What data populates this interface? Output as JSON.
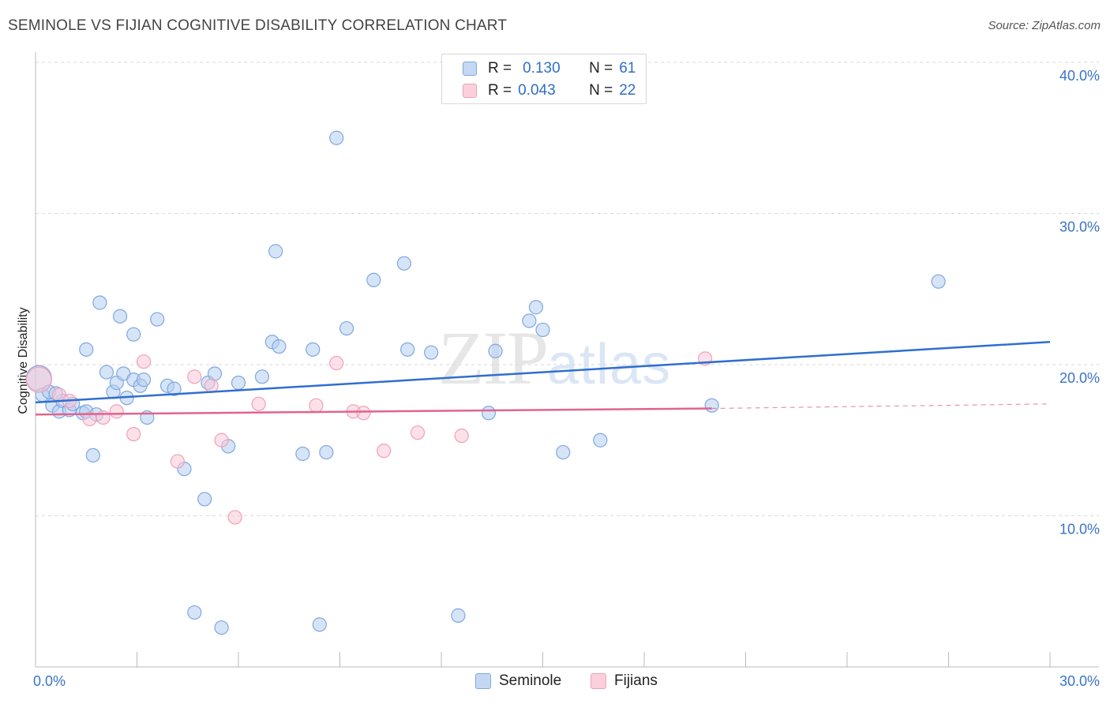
{
  "title": "SEMINOLE VS FIJIAN COGNITIVE DISABILITY CORRELATION CHART",
  "source": "Source: ZipAtlas.com",
  "watermark": {
    "zip": "ZIP",
    "atlas": "atlas"
  },
  "legend": {
    "series": [
      {
        "r_label": "R =",
        "r_value": "0.130",
        "n_label": "N =",
        "n_value": "61",
        "color": "#7fa8e0",
        "fill": "#c5d8f3"
      },
      {
        "r_label": "R =",
        "r_value": "0.043",
        "n_label": "N =",
        "n_value": "22",
        "color": "#f0a0b8",
        "fill": "#f9d0dc"
      }
    ]
  },
  "bottom_legend": [
    "Seminole",
    "Fijians"
  ],
  "chart_data": {
    "type": "scatter",
    "ylabel": "Cognitive Disability",
    "xlim": [
      0,
      30
    ],
    "ylim": [
      0,
      40
    ],
    "x_tick_labels": [
      {
        "value": 0,
        "label": "0.0%"
      },
      {
        "value": 30,
        "label": "30.0%"
      }
    ],
    "y_tick_labels": [
      {
        "value": 10,
        "label": "10.0%"
      },
      {
        "value": 20,
        "label": "20.0%"
      },
      {
        "value": 30,
        "label": "30.0%"
      },
      {
        "value": 40,
        "label": "40.0%"
      }
    ],
    "series": [
      {
        "name": "Seminole",
        "color": "#2f6fcf",
        "trend": {
          "x": [
            0,
            30
          ],
          "y": [
            17.5,
            21.5
          ]
        },
        "points": [
          [
            0.1,
            19.1
          ],
          [
            0.2,
            18.0
          ],
          [
            0.4,
            18.2
          ],
          [
            0.5,
            17.3
          ],
          [
            0.7,
            16.9
          ],
          [
            0.8,
            17.6
          ],
          [
            1.0,
            17.0
          ],
          [
            1.1,
            17.4
          ],
          [
            1.4,
            16.8
          ],
          [
            1.5,
            16.9
          ],
          [
            1.8,
            16.7
          ],
          [
            1.5,
            21.0
          ],
          [
            1.7,
            14.0
          ],
          [
            1.9,
            24.1
          ],
          [
            2.1,
            19.5
          ],
          [
            2.3,
            18.2
          ],
          [
            2.4,
            18.8
          ],
          [
            2.5,
            23.2
          ],
          [
            2.6,
            19.4
          ],
          [
            2.7,
            17.8
          ],
          [
            2.9,
            19.0
          ],
          [
            2.9,
            22.0
          ],
          [
            3.1,
            18.6
          ],
          [
            3.2,
            19.0
          ],
          [
            3.3,
            16.5
          ],
          [
            3.6,
            23.0
          ],
          [
            3.9,
            18.6
          ],
          [
            4.1,
            18.4
          ],
          [
            4.4,
            13.1
          ],
          [
            4.7,
            3.6
          ],
          [
            5.0,
            11.1
          ],
          [
            5.1,
            18.8
          ],
          [
            5.3,
            19.4
          ],
          [
            5.5,
            2.6
          ],
          [
            5.7,
            14.6
          ],
          [
            6.0,
            18.8
          ],
          [
            6.7,
            19.2
          ],
          [
            7.0,
            21.5
          ],
          [
            7.1,
            27.5
          ],
          [
            7.2,
            21.2
          ],
          [
            7.9,
            14.1
          ],
          [
            8.2,
            21.0
          ],
          [
            8.4,
            2.8
          ],
          [
            8.6,
            14.2
          ],
          [
            8.9,
            35.0
          ],
          [
            9.2,
            22.4
          ],
          [
            10.0,
            25.6
          ],
          [
            10.9,
            26.7
          ],
          [
            11.0,
            21.0
          ],
          [
            11.7,
            20.8
          ],
          [
            12.5,
            3.4
          ],
          [
            13.4,
            16.8
          ],
          [
            13.6,
            20.9
          ],
          [
            14.6,
            22.9
          ],
          [
            14.8,
            23.8
          ],
          [
            15.0,
            22.3
          ],
          [
            15.6,
            14.2
          ],
          [
            16.7,
            15.0
          ],
          [
            20.0,
            17.3
          ],
          [
            26.7,
            25.5
          ],
          [
            0.6,
            18.1
          ]
        ]
      },
      {
        "name": "Fijians",
        "color": "#e0648f",
        "trend": {
          "x": [
            0,
            20
          ],
          "y": [
            16.7,
            17.1
          ]
        },
        "trend_dashed": {
          "x": [
            20,
            30
          ],
          "y": [
            17.1,
            17.4
          ]
        },
        "points": [
          [
            0.1,
            19.0
          ],
          [
            0.7,
            18.0
          ],
          [
            1.0,
            17.6
          ],
          [
            1.6,
            16.4
          ],
          [
            2.0,
            16.5
          ],
          [
            2.4,
            16.9
          ],
          [
            2.9,
            15.4
          ],
          [
            3.2,
            20.2
          ],
          [
            4.2,
            13.6
          ],
          [
            4.7,
            19.2
          ],
          [
            5.2,
            18.6
          ],
          [
            5.5,
            15.0
          ],
          [
            5.9,
            9.9
          ],
          [
            6.6,
            17.4
          ],
          [
            8.3,
            17.3
          ],
          [
            8.9,
            20.1
          ],
          [
            9.4,
            16.9
          ],
          [
            9.7,
            16.8
          ],
          [
            10.3,
            14.3
          ],
          [
            11.3,
            15.5
          ],
          [
            12.6,
            15.3
          ],
          [
            19.8,
            20.4
          ]
        ]
      }
    ]
  }
}
